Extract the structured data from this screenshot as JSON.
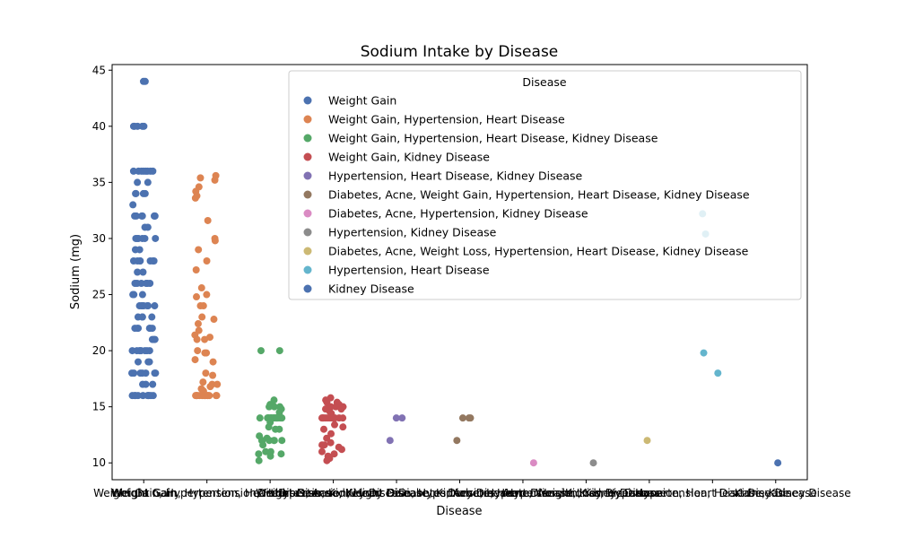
{
  "chart_data": {
    "type": "scatter",
    "title": "Sodium Intake by Disease",
    "xlabel": "Disease",
    "ylabel": "Sodium (mg)",
    "ylim": [
      8.5,
      45.5
    ],
    "yticks": [
      10,
      15,
      20,
      25,
      30,
      35,
      40,
      45
    ],
    "legend": {
      "title": "Disease",
      "placement": "upper-right"
    },
    "grid": false,
    "categories": [
      "Weight Gain",
      "Weight Gain, Hypertension, Heart Disease",
      "Weight Gain, Hypertension, Heart Disease, Kidney Disease",
      "Weight Gain, Kidney Disease",
      "Hypertension, Heart Disease, Kidney Disease",
      "Diabetes, Acne, Weight Gain, Hypertension, Heart Disease, Kidney Disease",
      "Diabetes, Acne, Hypertension, Kidney Disease",
      "Hypertension, Kidney Disease",
      "Diabetes, Acne, Weight Loss, Hypertension, Heart Disease, Kidney Disease",
      "Hypertension, Heart Disease",
      "Kidney Disease"
    ],
    "colors": [
      "#4c72b0",
      "#dd8452",
      "#55a868",
      "#c44e52",
      "#8172b3",
      "#937860",
      "#da8bc3",
      "#8c8c8c",
      "#ccb974",
      "#64b5cd",
      "#4c72b0"
    ],
    "series": [
      {
        "name": "Weight Gain",
        "values": [
          44,
          44,
          40,
          40,
          40,
          40,
          40,
          36,
          36,
          36,
          36,
          36,
          36,
          36,
          36,
          35,
          35,
          34,
          34,
          34,
          34,
          33,
          32,
          32,
          32,
          32,
          32,
          32,
          32,
          31,
          31,
          30,
          30,
          30,
          30,
          30,
          30,
          29,
          29,
          28,
          28,
          28,
          28,
          28,
          28,
          28,
          27,
          27,
          26,
          26,
          26,
          26,
          26,
          26,
          25,
          25,
          25,
          24,
          24,
          24,
          24,
          24,
          24,
          24,
          24,
          23,
          23,
          23,
          23,
          22,
          22,
          22,
          22,
          22,
          22,
          21,
          21,
          21,
          20,
          20,
          20,
          20,
          20,
          20,
          20,
          20,
          19,
          19,
          19,
          18,
          18,
          18,
          18,
          18,
          18,
          18,
          17,
          17,
          17,
          16,
          16,
          16,
          16,
          16,
          16,
          16,
          16,
          16,
          16
        ]
      },
      {
        "name": "Weight Gain, Hypertension, Heart Disease",
        "values": [
          35.6,
          35.4,
          35.2,
          34.6,
          34.2,
          33.8,
          33.6,
          31.6,
          30,
          29.8,
          29,
          28,
          27.2,
          25.6,
          25,
          24.8,
          24,
          24,
          23,
          22.8,
          22.4,
          21.8,
          21.4,
          21.2,
          21,
          21,
          20,
          19.8,
          19.8,
          19.2,
          19,
          18,
          17.8,
          17.2,
          17,
          17,
          16.8,
          16.6,
          16.4,
          16,
          16,
          16,
          16,
          16,
          16,
          16,
          16,
          16,
          16,
          16,
          16,
          16,
          16
        ]
      },
      {
        "name": "Weight Gain, Hypertension, Heart Disease, Kidney Disease",
        "values": [
          20,
          20,
          15.6,
          15.2,
          15,
          15,
          15,
          14.8,
          14.5,
          14,
          14,
          14,
          14,
          14,
          14,
          14,
          14,
          14,
          14,
          14,
          14,
          14,
          14,
          14,
          14,
          14,
          13.6,
          13.2,
          13,
          13,
          12.4,
          12.2,
          12,
          12,
          12,
          12,
          12,
          12,
          11.6,
          11,
          11,
          10.8,
          10.8,
          10.6,
          10.2
        ]
      },
      {
        "name": "Weight Gain, Kidney Disease",
        "values": [
          15.8,
          15.6,
          15.4,
          15.4,
          15.2,
          15,
          15,
          15,
          15,
          14.8,
          14.8,
          14.6,
          14.4,
          14,
          14,
          14,
          14,
          14,
          14,
          14,
          14,
          14,
          14,
          14,
          14,
          14,
          13.4,
          13.2,
          13,
          12.6,
          12.2,
          11.8,
          11.6,
          11.6,
          11.4,
          11.2,
          11,
          10.8,
          10.6,
          10.4,
          10.2
        ]
      },
      {
        "name": "Hypertension, Heart Disease, Kidney Disease",
        "values": [
          14,
          14,
          12
        ]
      },
      {
        "name": "Diabetes, Acne, Weight Gain, Hypertension, Heart Disease, Kidney Disease",
        "values": [
          14,
          14,
          14,
          12
        ]
      },
      {
        "name": "Diabetes, Acne, Hypertension, Kidney Disease",
        "values": [
          10
        ]
      },
      {
        "name": "Hypertension, Kidney Disease",
        "values": [
          10
        ]
      },
      {
        "name": "Diabetes, Acne, Weight Loss, Hypertension, Heart Disease, Kidney Disease",
        "values": [
          12
        ]
      },
      {
        "name": "Hypertension, Heart Disease",
        "values": [
          32.2,
          30.4,
          19.8,
          18
        ]
      },
      {
        "name": "Kidney Disease",
        "values": [
          10
        ]
      }
    ]
  }
}
